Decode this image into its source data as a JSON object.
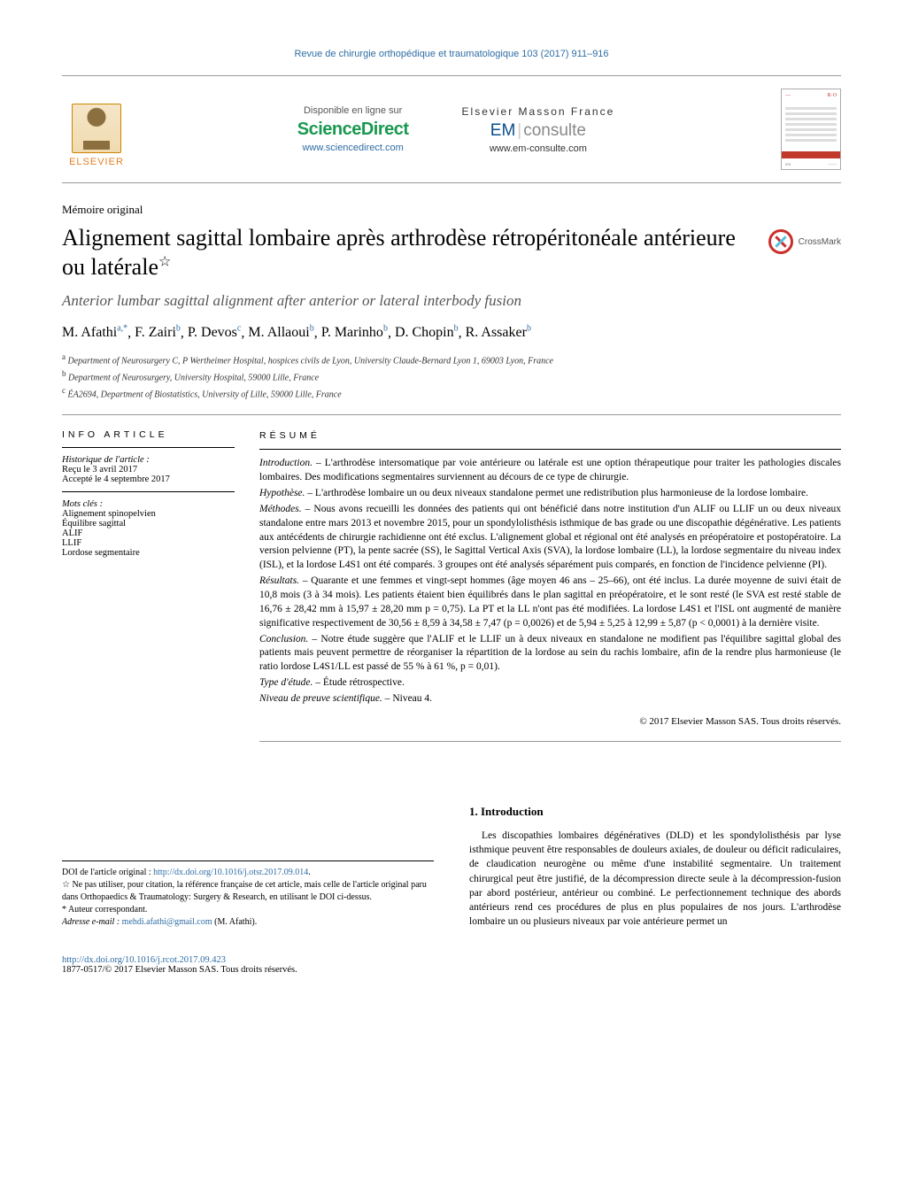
{
  "journal": {
    "running_head": "Revue de chirurgie orthopédique et traumatologique 103 (2017) 911–916",
    "elsevier_label": "ELSEVIER",
    "available_online": "Disponible en ligne sur",
    "sciencedirect": "ScienceDirect",
    "sciencedirect_url": "www.sciencedirect.com",
    "em_line1": "Elsevier Masson France",
    "em_brand_em": "EM",
    "em_brand_consulte": "consulte",
    "em_url": "www.em-consulte.com",
    "thumb_brand": "R·O",
    "thumb_foot_left": "em",
    "thumb_foot_right": "——"
  },
  "article": {
    "type": "Mémoire original",
    "title_fr": "Alignement sagittal lombaire après arthrodèse rétropéritonéale antérieure ou latérale",
    "title_star": "☆",
    "title_en": "Anterior lumbar sagittal alignment after anterior or lateral interbody fusion",
    "crossmark": "CrossMark"
  },
  "authors_line": "M. Afathiᵃ,*, F. Zairiᵇ, P. Devosᶜ, M. Allaouiᵇ, P. Marinhoᵇ, D. Chopinᵇ, R. Assakerᵇ",
  "authors": [
    {
      "name": "M. Afathi",
      "aff": "a,*"
    },
    {
      "name": "F. Zairi",
      "aff": "b"
    },
    {
      "name": "P. Devos",
      "aff": "c"
    },
    {
      "name": "M. Allaoui",
      "aff": "b"
    },
    {
      "name": "P. Marinho",
      "aff": "b"
    },
    {
      "name": "D. Chopin",
      "aff": "b"
    },
    {
      "name": "R. Assaker",
      "aff": "b"
    }
  ],
  "affiliations": {
    "a": "Department of Neurosurgery C, P Wertheimer Hospital, hospices civils de Lyon, University Claude-Bernard Lyon 1, 69003 Lyon, France",
    "b": "Department of Neurosurgery, University Hospital, 59000 Lille, France",
    "c": "ÉA2694, Department of Biostatistics, University of Lille, 59000 Lille, France"
  },
  "info": {
    "heading": "INFO ARTICLE",
    "history_hd": "Historique de l'article :",
    "received": "Reçu le 3 avril 2017",
    "accepted": "Accepté le 4 septembre 2017",
    "keywords_hd": "Mots clés :",
    "keywords": [
      "Alignement spinopelvien",
      "Équilibre sagittal",
      "ALIF",
      "LLIF",
      "Lordose segmentaire"
    ]
  },
  "abstract": {
    "heading": "RÉSUMÉ",
    "sections": {
      "introduction_hd": "Introduction. – ",
      "introduction": "L'arthrodèse intersomatique par voie antérieure ou latérale est une option thérapeutique pour traiter les pathologies discales lombaires. Des modifications segmentaires surviennent au décours de ce type de chirurgie.",
      "hypothese_hd": "Hypothèse. – ",
      "hypothese": "L'arthrodèse lombaire un ou deux niveaux standalone permet une redistribution plus harmonieuse de la lordose lombaire.",
      "methodes_hd": "Méthodes. – ",
      "methodes": "Nous avons recueilli les données des patients qui ont bénéficié dans notre institution d'un ALIF ou LLIF un ou deux niveaux standalone entre mars 2013 et novembre 2015, pour un spondylolisthésis isthmique de bas grade ou une discopathie dégénérative. Les patients aux antécédents de chirurgie rachidienne ont été exclus. L'alignement global et régional ont été analysés en préopératoire et postopératoire. La version pelvienne (PT), la pente sacrée (SS), le Sagittal Vertical Axis (SVA), la lordose lombaire (LL), la lordose segmentaire du niveau index (ISL), et la lordose L4S1 ont été comparés. 3 groupes ont été analysés séparément puis comparés, en fonction de l'incidence pelvienne (PI).",
      "resultats_hd": "Résultats. – ",
      "resultats": "Quarante et une femmes et vingt-sept hommes (âge moyen 46 ans – 25–66), ont été inclus. La durée moyenne de suivi était de 10,8 mois (3 à 34 mois). Les patients étaient bien équilibrés dans le plan sagittal en préopératoire, et le sont resté (le SVA est resté stable de 16,76 ± 28,42 mm à 15,97 ± 28,20 mm p = 0,75). La PT et la LL n'ont pas été modifiées. La lordose L4S1 et l'ISL ont augmenté de manière significative respectivement de 30,56 ± 8,59 à 34,58 ± 7,47 (p = 0,0026) et de 5,94 ± 5,25 à 12,99 ± 5,87 (p < 0,0001) à la dernière visite.",
      "conclusion_hd": "Conclusion. – ",
      "conclusion": "Notre étude suggère que l'ALIF et le LLIF un à deux niveaux en standalone ne modifient pas l'équilibre sagittal global des patients mais peuvent permettre de réorganiser la répartition de la lordose au sein du rachis lombaire, afin de la rendre plus harmonieuse (le ratio lordose L4S1/LL est passé de 55 % à 61 %, p = 0,01).",
      "type_hd": "Type d'étude. – ",
      "type": "Étude rétrospective.",
      "niveau_hd": "Niveau de preuve scientifique. – ",
      "niveau": "Niveau 4."
    },
    "copyright": "© 2017 Elsevier Masson SAS. Tous droits réservés."
  },
  "body": {
    "section1_hd": "1.  Introduction",
    "section1_p1": "Les discopathies lombaires dégénératives (DLD) et les spondylolisthésis par lyse isthmique peuvent être responsables de douleurs axiales, de douleur ou déficit radiculaires, de claudication neurogène ou même d'une instabilité segmentaire. Un traitement chirurgical peut être justifié, de la décompression directe seule à la décompression-fusion par abord postérieur, antérieur ou combiné. Le perfectionnement technique des abords antérieurs rend ces procédures de plus en plus populaires de nos jours. L'arthrodèse lombaire un ou plusieurs niveaux par voie antérieure permet un"
  },
  "footnotes": {
    "doi_orig_label": "DOI de l'article original : ",
    "doi_orig": "http://dx.doi.org/10.1016/j.otsr.2017.09.014",
    "note_star": "☆ Ne pas utiliser, pour citation, la référence française de cet article, mais celle de l'article original paru dans Orthopaedics & Traumatology: Surgery & Research, en utilisant le DOI ci-dessus.",
    "corr": "* Auteur correspondant.",
    "email_label": "Adresse e-mail : ",
    "email": "mehdi.afathi@gmail.com",
    "email_suffix": " (M. Afathi).",
    "doi": "http://dx.doi.org/10.1016/j.rcot.2017.09.423",
    "issn": "1877-0517/© 2017 Elsevier Masson SAS. Tous droits réservés."
  },
  "colors": {
    "link": "#2e6da4",
    "elsevier_orange": "#e67e22",
    "sd_green": "#1a9850",
    "sd_orange": "#f39c12",
    "em_blue": "#0b4f8a",
    "rule": "#999999",
    "text": "#000000"
  },
  "typography": {
    "body_font": "Georgia, serif",
    "ui_font": "Arial, sans-serif",
    "title_size_pt": 26,
    "subtitle_size_pt": 17,
    "body_size_pt": 11.5,
    "small_size_pt": 10
  }
}
